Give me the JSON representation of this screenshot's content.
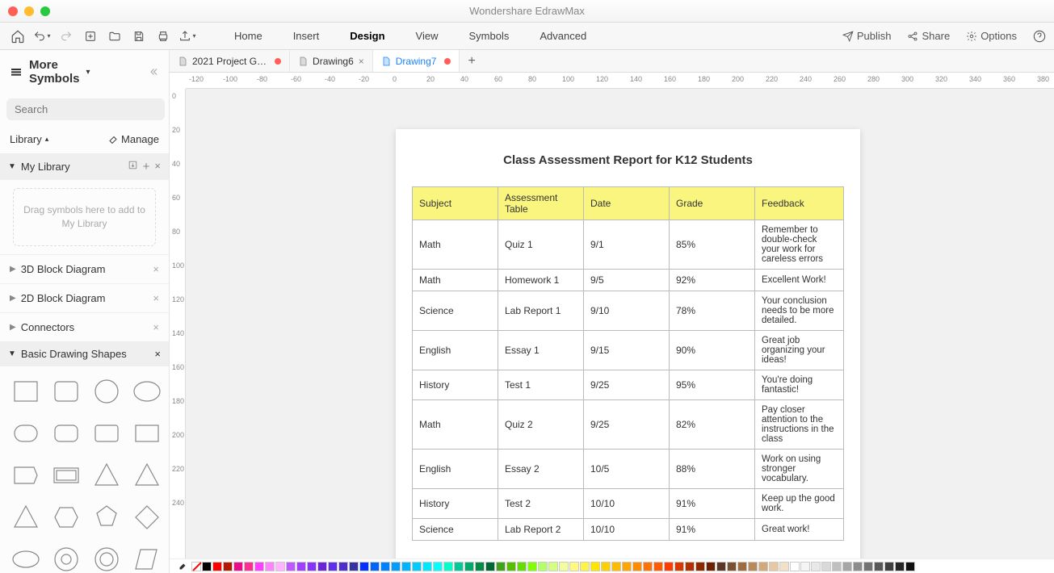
{
  "app": {
    "title": "Wondershare EdrawMax"
  },
  "menu": [
    "Home",
    "Insert",
    "Design",
    "View",
    "Symbols",
    "Advanced"
  ],
  "menu_active_index": 2,
  "actions": {
    "publish": "Publish",
    "share": "Share",
    "options": "Options"
  },
  "sidebar": {
    "more_symbols": "More Symbols",
    "search_placeholder": "Search",
    "search_button": "Search",
    "library_label": "Library",
    "manage_label": "Manage",
    "my_library": "My Library",
    "drop_hint": "Drag symbols here to add to My Library",
    "items": [
      "3D Block Diagram",
      "2D Block Diagram",
      "Connectors",
      "Basic Drawing Shapes"
    ]
  },
  "tabs": [
    {
      "label": "2021 Project G…",
      "modified": true,
      "active": false
    },
    {
      "label": "Drawing6",
      "modified": false,
      "active": false,
      "closable": true
    },
    {
      "label": "Drawing7",
      "modified": true,
      "active": true
    }
  ],
  "ruler_h": [
    -120,
    -100,
    -80,
    -60,
    -40,
    -20,
    0,
    20,
    40,
    60,
    80,
    100,
    120,
    140,
    160,
    180,
    200,
    220,
    240,
    260,
    280,
    300,
    320,
    340,
    360,
    380
  ],
  "ruler_v": [
    0,
    20,
    40,
    60,
    80,
    100,
    120,
    140,
    160,
    180,
    200,
    220,
    240
  ],
  "document": {
    "title": "Class Assessment Report for K12 Students",
    "columns": [
      "Subject",
      "Assessment Table",
      "Date",
      "Grade",
      "Feedback"
    ],
    "rows": [
      [
        "Math",
        "Quiz 1",
        "9/1",
        "85%",
        "Remember to double-check your work for careless errors"
      ],
      [
        "Math",
        "Homework 1",
        "9/5",
        "92%",
        "Excellent Work!"
      ],
      [
        "Science",
        "Lab Report 1",
        "9/10",
        "78%",
        "Your conclusion needs to be more detailed."
      ],
      [
        "English",
        "Essay 1",
        "9/15",
        "90%",
        "Great job organizing your ideas!"
      ],
      [
        "History",
        "Test 1",
        "9/25",
        "95%",
        "You're doing fantastic!"
      ],
      [
        "Math",
        "Quiz 2",
        "9/25",
        "82%",
        "Pay closer attention to the instructions in the class"
      ],
      [
        "English",
        "Essay 2",
        "10/5",
        "88%",
        "Work on using stronger vocabulary."
      ],
      [
        "History",
        "Test 2",
        "10/10",
        "91%",
        "Keep up the good work."
      ],
      [
        "Science",
        "Lab Report 2",
        "10/10",
        "91%",
        "Great work!"
      ]
    ],
    "header_bg": "#f9f57e",
    "column_widths": [
      "106px",
      "106px",
      "106px",
      "106px",
      "auto"
    ]
  },
  "palette": [
    "#000000",
    "#ff0000",
    "#b51a00",
    "#ea0b8c",
    "#ff2e92",
    "#ff40ff",
    "#ff83ff",
    "#ffb4ff",
    "#c057ff",
    "#a13eff",
    "#8931ff",
    "#6b24d6",
    "#5e30eb",
    "#4f2ec9",
    "#3634a3",
    "#0433ff",
    "#0064ff",
    "#0082ff",
    "#009dff",
    "#00b4ff",
    "#00cdff",
    "#00e7ff",
    "#00ffff",
    "#00ffcb",
    "#00ca98",
    "#00a86b",
    "#008b45",
    "#006633",
    "#41a317",
    "#56bf00",
    "#66dd00",
    "#7fff00",
    "#b2ff66",
    "#d5ff80",
    "#f0ff99",
    "#fff982",
    "#fff347",
    "#ffe600",
    "#ffd000",
    "#ffbb00",
    "#ffa500",
    "#ff8c00",
    "#ff7300",
    "#ff5b00",
    "#ff3b00",
    "#d63a00",
    "#b33000",
    "#8e2800",
    "#6d2100",
    "#5a3825",
    "#7a5230",
    "#9f6b3f",
    "#b88a5b",
    "#d3a97a",
    "#e7c8a0",
    "#f2e0c9",
    "#ffffff",
    "#f4f4f4",
    "#e8e8e8",
    "#d9d9d9",
    "#c0c0c0",
    "#a6a6a6",
    "#8c8c8c",
    "#737373",
    "#595959",
    "#404040",
    "#262626",
    "#111111"
  ]
}
